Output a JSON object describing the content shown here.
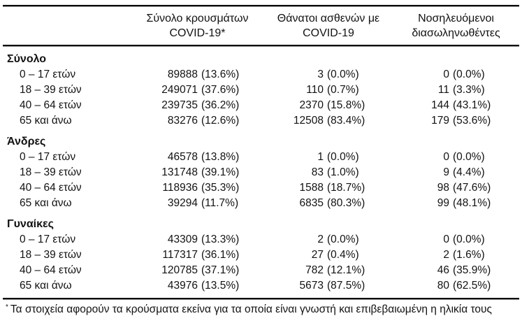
{
  "table": {
    "columns": [
      {
        "line1": "Σύνολο κρουσμάτων",
        "line2": "COVID-19*"
      },
      {
        "line1": "Θάνατοι ασθενών με",
        "line2": "COVID-19"
      },
      {
        "line1": "Νοσηλευόμενοι",
        "line2": "διασωληνωθέντες"
      }
    ],
    "sections": [
      {
        "label": "Σύνολο",
        "rows": [
          {
            "label": "0 – 17 ετών",
            "cases": "89888",
            "cases_pct": "(13.6%)",
            "deaths": "3",
            "deaths_pct": "(0.0%)",
            "intubated": "0",
            "intubated_pct": "(0.0%)"
          },
          {
            "label": "18 – 39 ετών",
            "cases": "249071",
            "cases_pct": "(37.6%)",
            "deaths": "110",
            "deaths_pct": "(0.7%)",
            "intubated": "11",
            "intubated_pct": "(3.3%)"
          },
          {
            "label": "40 – 64 ετών",
            "cases": "239735",
            "cases_pct": "(36.2%)",
            "deaths": "2370",
            "deaths_pct": "(15.8%)",
            "intubated": "144",
            "intubated_pct": "(43.1%)"
          },
          {
            "label": "65 και άνω",
            "cases": "83276",
            "cases_pct": "(12.6%)",
            "deaths": "12508",
            "deaths_pct": "(83.4%)",
            "intubated": "179",
            "intubated_pct": "(53.6%)"
          }
        ]
      },
      {
        "label": "Άνδρες",
        "rows": [
          {
            "label": "0 – 17 ετών",
            "cases": "46578",
            "cases_pct": "(13.8%)",
            "deaths": "1",
            "deaths_pct": "(0.0%)",
            "intubated": "0",
            "intubated_pct": "(0.0%)"
          },
          {
            "label": "18 – 39 ετών",
            "cases": "131748",
            "cases_pct": "(39.1%)",
            "deaths": "83",
            "deaths_pct": "(1.0%)",
            "intubated": "9",
            "intubated_pct": "(4.4%)"
          },
          {
            "label": "40 – 64 ετών",
            "cases": "118936",
            "cases_pct": "(35.3%)",
            "deaths": "1588",
            "deaths_pct": "(18.7%)",
            "intubated": "98",
            "intubated_pct": "(47.6%)"
          },
          {
            "label": "65 και άνω",
            "cases": "39294",
            "cases_pct": "(11.7%)",
            "deaths": "6835",
            "deaths_pct": "(80.3%)",
            "intubated": "99",
            "intubated_pct": "(48.1%)"
          }
        ]
      },
      {
        "label": "Γυναίκες",
        "rows": [
          {
            "label": "0 – 17 ετών",
            "cases": "43309",
            "cases_pct": "(13.3%)",
            "deaths": "2",
            "deaths_pct": "(0.0%)",
            "intubated": "0",
            "intubated_pct": "(0.0%)"
          },
          {
            "label": "18 – 39 ετών",
            "cases": "117317",
            "cases_pct": "(36.1%)",
            "deaths": "27",
            "deaths_pct": "(0.4%)",
            "intubated": "2",
            "intubated_pct": "(1.6%)"
          },
          {
            "label": "40 – 64 ετών",
            "cases": "120785",
            "cases_pct": "(37.1%)",
            "deaths": "782",
            "deaths_pct": "(12.1%)",
            "intubated": "46",
            "intubated_pct": "(35.9%)"
          },
          {
            "label": "65 και άνω",
            "cases": "43976",
            "cases_pct": "(13.5%)",
            "deaths": "5673",
            "deaths_pct": "(87.5%)",
            "intubated": "80",
            "intubated_pct": "(62.5%)"
          }
        ]
      }
    ],
    "footnote": {
      "marker": "*",
      "text": "Τα στοιχεία αφορούν τα κρούσματα εκείνα για τα οποία είναι γνωστή και επιβεβαιωμένη η ηλικία τους"
    }
  }
}
